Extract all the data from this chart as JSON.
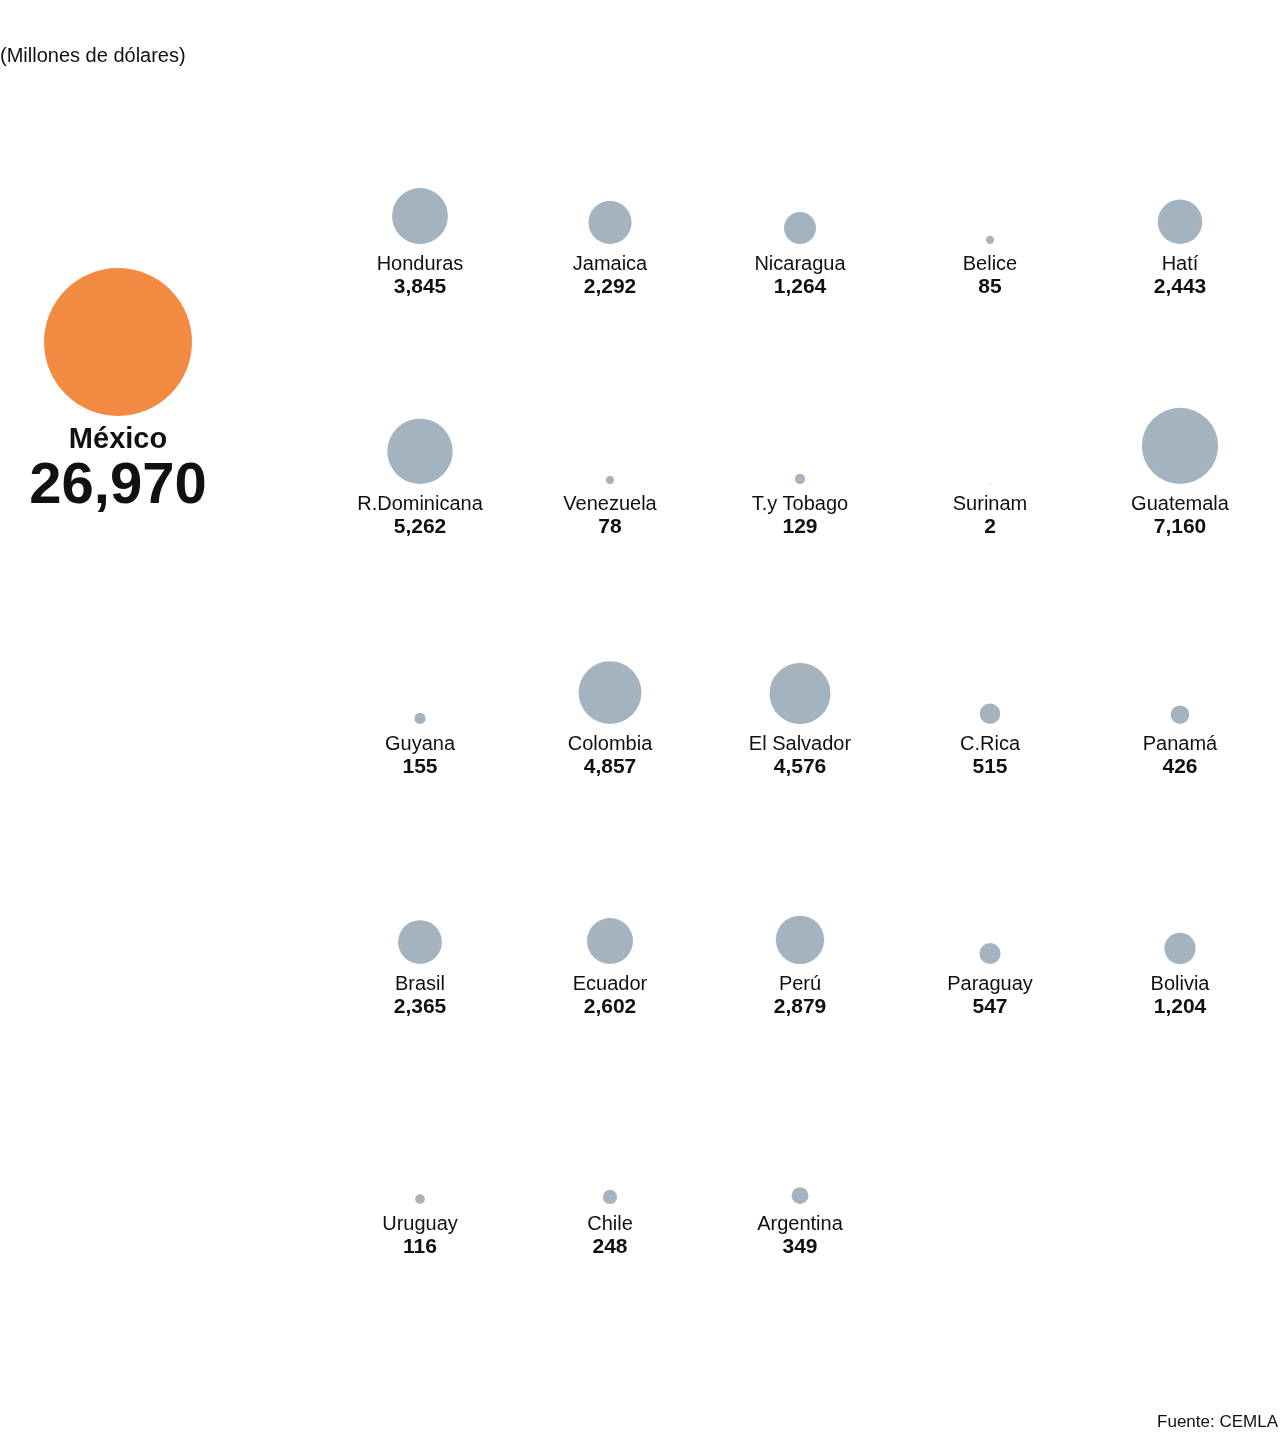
{
  "chart_data": {
    "type": "other",
    "title": "(Millones de dólares)",
    "categories": [
      "México",
      "Honduras",
      "Jamaica",
      "Nicaragua",
      "Belice",
      "Hatí",
      "R.Dominicana",
      "Venezuela",
      "T.y Tobago",
      "Surinam",
      "Guatemala",
      "Guyana",
      "Colombia",
      "El Salvador",
      "C.Rica",
      "Panamá",
      "Brasil",
      "Ecuador",
      "Perú",
      "Paraguay",
      "Bolivia",
      "Uruguay",
      "Chile",
      "Argentina"
    ],
    "values": [
      26970,
      3845,
      2292,
      1264,
      85,
      2443,
      5262,
      78,
      129,
      2,
      7160,
      155,
      4857,
      4576,
      515,
      426,
      2365,
      2602,
      2879,
      547,
      1204,
      116,
      248,
      349
    ],
    "value_labels": [
      "26,970",
      "3,845",
      "2,292",
      "1,264",
      "85",
      "2,443",
      "5,262",
      "78",
      "129",
      "2",
      "7,160",
      "155",
      "4,857",
      "4,576",
      "515",
      "426",
      "2,365",
      "2,602",
      "2,879",
      "547",
      "1,204",
      "116",
      "248",
      "349"
    ],
    "colors": [
      "#f28a41",
      "#a3b3bf",
      "#a3b3bf",
      "#a3b3bf",
      "#a3b3bf",
      "#a3b3bf",
      "#a3b3bf",
      "#a3b3bf",
      "#a3b3bf",
      "#a3b3bf",
      "#a3b3bf",
      "#a3b3bf",
      "#a3b3bf",
      "#a3b3bf",
      "#a3b3bf",
      "#a3b3bf",
      "#a3b3bf",
      "#a3b3bf",
      "#a3b3bf",
      "#a3b3bf",
      "#a3b3bf",
      "#a3b3bf",
      "#a3b3bf",
      "#a3b3bf"
    ],
    "annotations": [
      "Fuente: CEMLA"
    ]
  }
}
